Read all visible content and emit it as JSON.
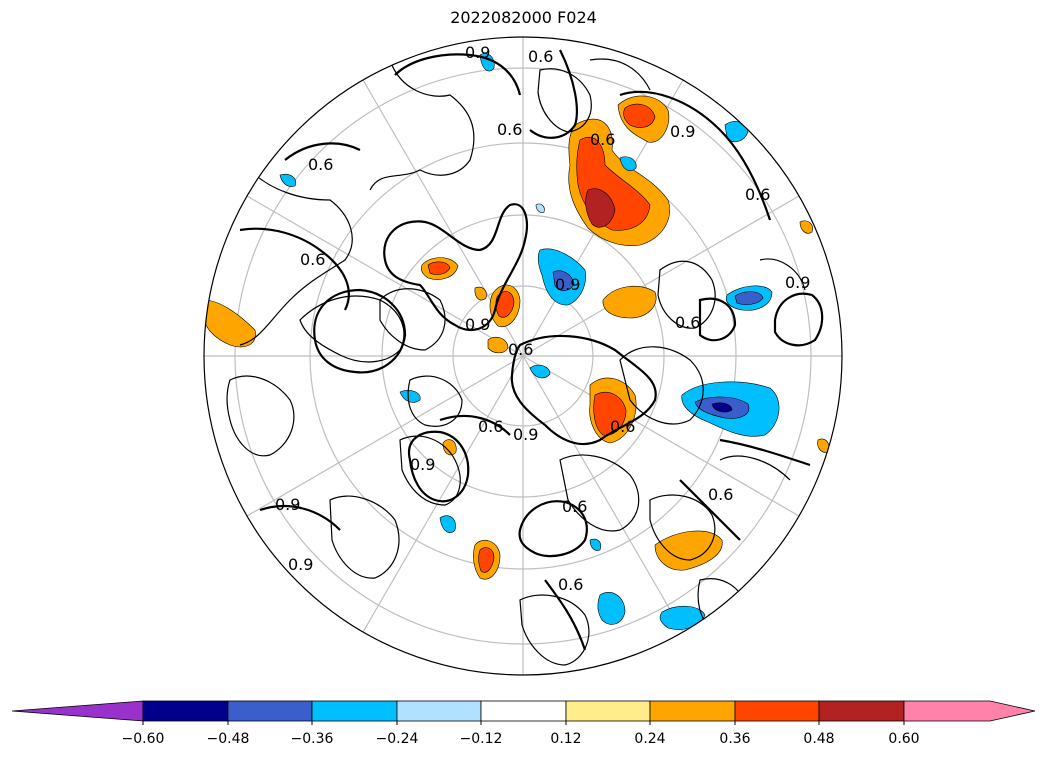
{
  "title": "2022082000 F024",
  "colorbar": {
    "ticks": [
      "−0.60",
      "−0.48",
      "−0.36",
      "−0.24",
      "−0.12",
      "0.12",
      "0.24",
      "0.36",
      "0.48",
      "0.60"
    ],
    "bins": [
      {
        "range": "< -0.60",
        "color": "#9932cc"
      },
      {
        "range": "-0.60 to -0.48",
        "color": "#00008b"
      },
      {
        "range": "-0.48 to -0.36",
        "color": "#3a5fcd"
      },
      {
        "range": "-0.36 to -0.24",
        "color": "#00bfff"
      },
      {
        "range": "-0.24 to -0.12",
        "color": "#b0e2ff"
      },
      {
        "range": "-0.12 to 0.12",
        "color": "#ffffff"
      },
      {
        "range": "0.12 to 0.24",
        "color": "#ffec8b"
      },
      {
        "range": "0.24 to 0.36",
        "color": "#ffa500"
      },
      {
        "range": "0.36 to 0.48",
        "color": "#ff4500"
      },
      {
        "range": "0.48 to 0.60",
        "color": "#b22222"
      },
      {
        "range": "> 0.60",
        "color": "#ff82ab"
      }
    ]
  },
  "map": {
    "projection": "north-polar-stereographic",
    "graticule_color": "#bfbfbf",
    "contour_labels": [
      "0.9",
      "0.6",
      "0.6",
      "0.6",
      "0.9",
      "0.6",
      "0.6",
      "0.9",
      "0.6",
      "0.6",
      "0.9",
      "0.9",
      "0.6",
      "0.9",
      "0.6",
      "0.6",
      "0.9",
      "0.9",
      "0.6",
      "0.6",
      "0.9",
      "0.6"
    ]
  }
}
